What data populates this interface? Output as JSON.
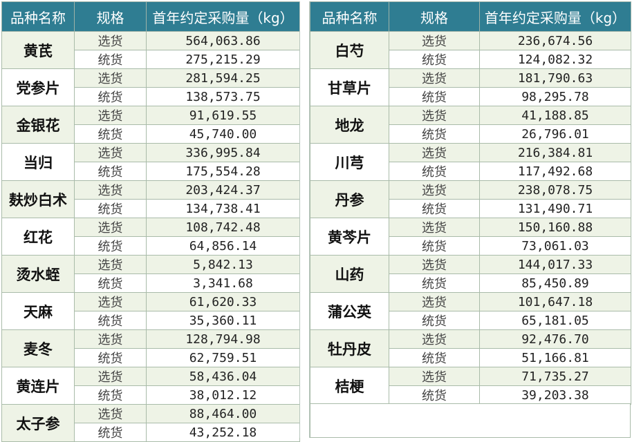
{
  "headers": {
    "name": "品种名称",
    "spec": "规格",
    "qty": "首年约定采购量（kg）"
  },
  "left": [
    {
      "name": "黄芪",
      "rows": [
        {
          "spec": "选货",
          "qty": "564,063.86"
        },
        {
          "spec": "统货",
          "qty": "275,215.29"
        }
      ]
    },
    {
      "name": "党参片",
      "rows": [
        {
          "spec": "选货",
          "qty": "281,594.25"
        },
        {
          "spec": "统货",
          "qty": "138,573.75"
        }
      ]
    },
    {
      "name": "金银花",
      "rows": [
        {
          "spec": "选货",
          "qty": "91,619.55"
        },
        {
          "spec": "统货",
          "qty": "45,740.00"
        }
      ]
    },
    {
      "name": "当归",
      "rows": [
        {
          "spec": "选货",
          "qty": "336,995.84"
        },
        {
          "spec": "统货",
          "qty": "175,554.28"
        }
      ]
    },
    {
      "name": "麸炒白术",
      "rows": [
        {
          "spec": "选货",
          "qty": "203,424.37"
        },
        {
          "spec": "统货",
          "qty": "134,738.41"
        }
      ]
    },
    {
      "name": "红花",
      "rows": [
        {
          "spec": "选货",
          "qty": "108,742.48"
        },
        {
          "spec": "统货",
          "qty": "64,856.14"
        }
      ]
    },
    {
      "name": "烫水蛭",
      "rows": [
        {
          "spec": "选货",
          "qty": "5,842.13"
        },
        {
          "spec": "统货",
          "qty": "3,341.68"
        }
      ]
    },
    {
      "name": "天麻",
      "rows": [
        {
          "spec": "选货",
          "qty": "61,620.33"
        },
        {
          "spec": "统货",
          "qty": "35,360.11"
        }
      ]
    },
    {
      "name": "麦冬",
      "rows": [
        {
          "spec": "选货",
          "qty": "128,794.98"
        },
        {
          "spec": "统货",
          "qty": "62,759.51"
        }
      ]
    },
    {
      "name": "黄连片",
      "rows": [
        {
          "spec": "选货",
          "qty": "58,436.04"
        },
        {
          "spec": "统货",
          "qty": "38,012.12"
        }
      ]
    },
    {
      "name": "太子参",
      "rows": [
        {
          "spec": "选货",
          "qty": "88,464.00"
        },
        {
          "spec": "统货",
          "qty": "43,252.18"
        }
      ]
    }
  ],
  "right": [
    {
      "name": "白芍",
      "rows": [
        {
          "spec": "选货",
          "qty": "236,674.56"
        },
        {
          "spec": "统货",
          "qty": "124,082.32"
        }
      ]
    },
    {
      "name": "甘草片",
      "rows": [
        {
          "spec": "选货",
          "qty": "181,790.63"
        },
        {
          "spec": "统货",
          "qty": "98,295.78"
        }
      ]
    },
    {
      "name": "地龙",
      "rows": [
        {
          "spec": "选货",
          "qty": "41,188.85"
        },
        {
          "spec": "统货",
          "qty": "26,796.01"
        }
      ]
    },
    {
      "name": "川芎",
      "rows": [
        {
          "spec": "选货",
          "qty": "216,384.81"
        },
        {
          "spec": "统货",
          "qty": "117,492.68"
        }
      ]
    },
    {
      "name": "丹参",
      "rows": [
        {
          "spec": "选货",
          "qty": "238,078.75"
        },
        {
          "spec": "统货",
          "qty": "131,490.71"
        }
      ]
    },
    {
      "name": "黄芩片",
      "rows": [
        {
          "spec": "选货",
          "qty": "150,160.88"
        },
        {
          "spec": "统货",
          "qty": "73,061.03"
        }
      ]
    },
    {
      "name": "山药",
      "rows": [
        {
          "spec": "选货",
          "qty": "144,017.33"
        },
        {
          "spec": "统货",
          "qty": "85,450.89"
        }
      ]
    },
    {
      "name": "蒲公英",
      "rows": [
        {
          "spec": "选货",
          "qty": "101,647.18"
        },
        {
          "spec": "统货",
          "qty": "65,181.05"
        }
      ]
    },
    {
      "name": "牡丹皮",
      "rows": [
        {
          "spec": "选货",
          "qty": "92,476.70"
        },
        {
          "spec": "统货",
          "qty": "51,166.81"
        }
      ]
    },
    {
      "name": "桔梗",
      "rows": [
        {
          "spec": "选货",
          "qty": "71,735.27"
        },
        {
          "spec": "统货",
          "qty": "39,203.38"
        }
      ]
    }
  ]
}
